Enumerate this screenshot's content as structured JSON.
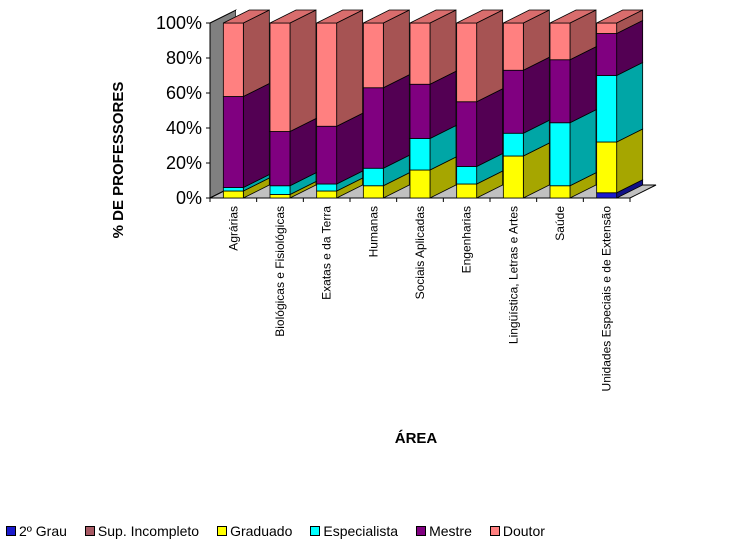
{
  "chart_data": {
    "type": "bar",
    "stacked": true,
    "percent": true,
    "three_d": true,
    "ylabel": "% DE PROFESSORES",
    "xlabel": "ÁREA",
    "yticks": [
      "0%",
      "20%",
      "40%",
      "60%",
      "80%",
      "100%"
    ],
    "ylim": [
      0,
      100
    ],
    "grid": false,
    "legend_position": "bottom",
    "categories": [
      "Agrárias",
      "Biológicas e Fisiológicas",
      "Exatas e da Terra",
      "Humanas",
      "Sociais Aplicadas",
      "Engenharias",
      "Lingüística, Letras e Artes",
      "Saúde",
      "Unidades Especiais e de Extensão"
    ],
    "series": [
      {
        "name": "2º Grau",
        "color": "#1a1acc",
        "values": [
          0,
          0,
          0,
          0,
          0,
          0,
          0,
          0,
          3
        ]
      },
      {
        "name": "Sup. Incompleto",
        "color": "#a85a64",
        "values": [
          0,
          0,
          0,
          0,
          0,
          0,
          0,
          0,
          0
        ]
      },
      {
        "name": "Graduado",
        "color": "#ffff00",
        "values": [
          4,
          2,
          4,
          7,
          16,
          8,
          24,
          7,
          29
        ]
      },
      {
        "name": "Especialista",
        "color": "#00ffff",
        "values": [
          2,
          5,
          4,
          10,
          18,
          10,
          13,
          36,
          38
        ]
      },
      {
        "name": "Mestre",
        "color": "#800080",
        "values": [
          52,
          31,
          33,
          46,
          31,
          37,
          36,
          36,
          24
        ]
      },
      {
        "name": "Doutor",
        "color": "#ff8080",
        "values": [
          42,
          62,
          59,
          37,
          35,
          45,
          27,
          21,
          6
        ]
      }
    ]
  }
}
